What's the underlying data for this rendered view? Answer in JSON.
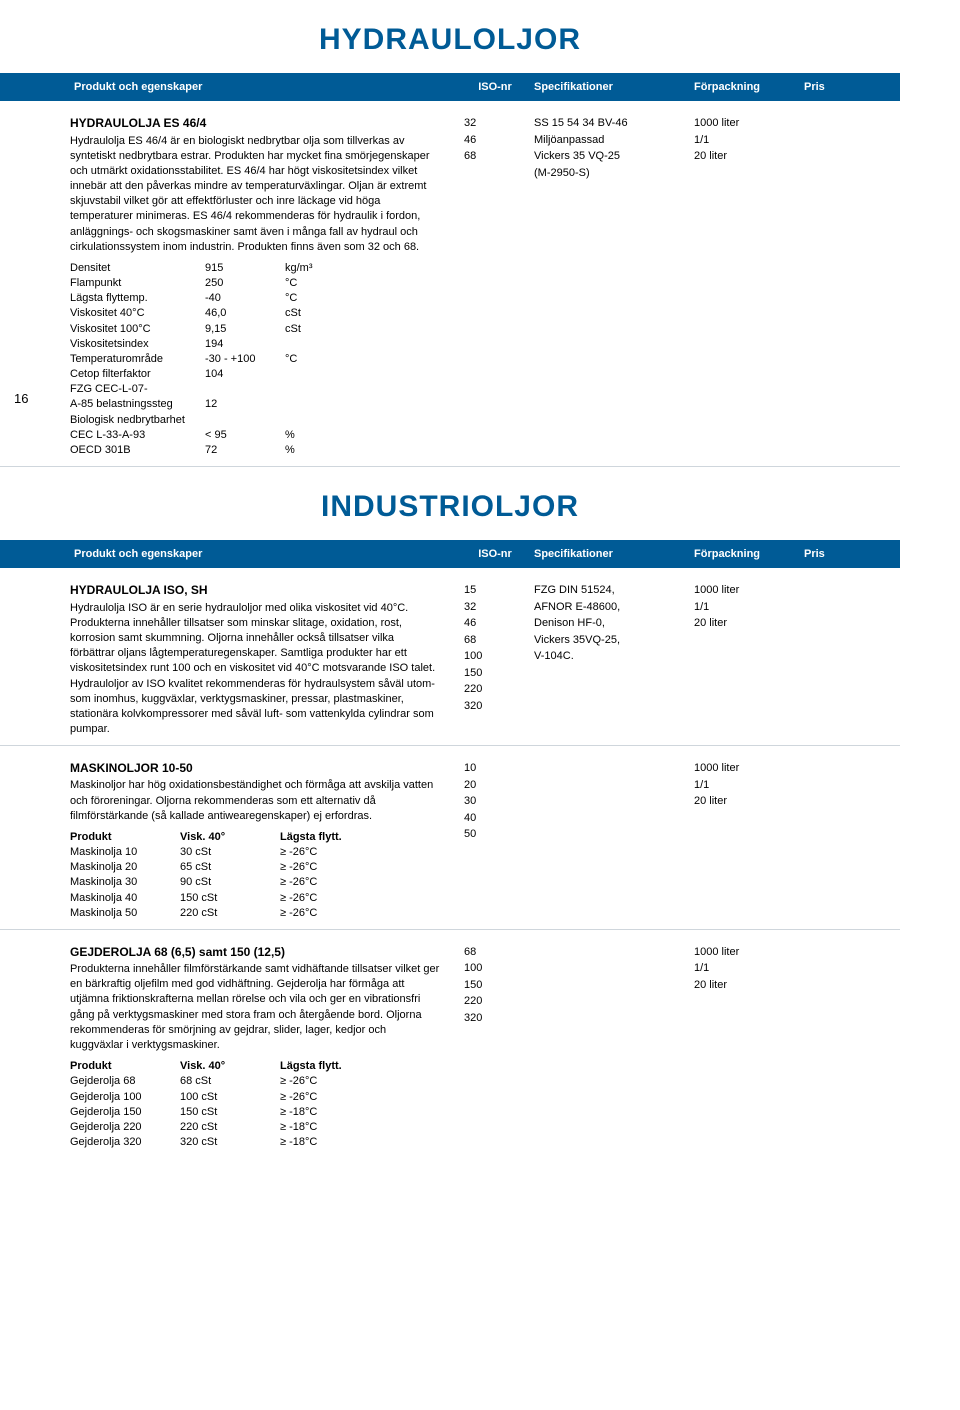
{
  "page_number": "16",
  "colors": {
    "accent": "#005b96",
    "text": "#000000",
    "bg": "#ffffff",
    "divider": "#cfd6dc"
  },
  "title1": "HYDRAULOLJOR",
  "title2": "INDUSTRIOLJOR",
  "headers": {
    "produkt": "Produkt och egenskaper",
    "iso": "ISO-nr",
    "spec": "Specifikationer",
    "pack": "Förpackning",
    "pris": "Pris"
  },
  "sec1": {
    "title": "HYDRAULOLJA ES 46/4",
    "desc": "Hydraulolja ES 46/4 är en biologiskt nedbrytbar olja som tillverkas av syntetiskt nedbrytbara estrar. Produkten har mycket fina smörjegenskaper och utmärkt oxidationsstabilitet. ES 46/4 har högt viskositetsindex vilket innebär att den påverkas mindre av temperaturväxlingar. Oljan är extremt skjuvstabil vilket gör att effektförluster och inre läckage vid höga temperaturer minimeras. ES 46/4 rekommenderas för hydraulik i fordon, anläggnings- och skogsmaskiner samt även i många fall av hydraul och cirkulationssystem inom industrin. Produkten finns även som 32 och 68.",
    "props": [
      {
        "l": "Densitet",
        "v": "915",
        "u": "kg/m³"
      },
      {
        "l": "Flampunkt",
        "v": "250",
        "u": "°C"
      },
      {
        "l": "Lägsta flyttemp.",
        "v": "-40",
        "u": "°C"
      },
      {
        "l": "Viskositet 40°C",
        "v": "46,0",
        "u": "cSt"
      },
      {
        "l": "Viskositet 100°C",
        "v": "9,15",
        "u": "cSt"
      },
      {
        "l": "Viskositetsindex",
        "v": "194",
        "u": ""
      },
      {
        "l": "Temperaturområde",
        "v": "-30 - +100",
        "u": "°C"
      },
      {
        "l": "Cetop filterfaktor",
        "v": "104",
        "u": ""
      },
      {
        "l": "FZG CEC-L-07-",
        "v": "",
        "u": ""
      },
      {
        "l": "A-85 belastningssteg",
        "v": "12",
        "u": ""
      },
      {
        "l": "Biologisk nedbrytbarhet",
        "v": "",
        "u": ""
      },
      {
        "l": "CEC L-33-A-93",
        "v": "< 95",
        "u": "%"
      },
      {
        "l": "OECD 301B",
        "v": "72",
        "u": "%"
      }
    ],
    "iso": [
      "32",
      "46",
      "68"
    ],
    "spec": [
      "SS 15 54 34 BV-46",
      "Miljöanpassad",
      "Vickers 35 VQ-25",
      "(M-2950-S)"
    ],
    "pack": [
      "1000 liter",
      "1/1",
      "20 liter"
    ]
  },
  "sec2": {
    "title": "HYDRAULOLJA ISO, SH",
    "desc": "Hydraulolja ISO är en serie hydrauloljor med olika viskositet vid 40°C. Produkterna innehåller tillsatser som minskar slitage, oxidation, rost, korrosion samt skummning. Oljorna innehåller också tillsatser vilka förbättrar oljans lågtemperaturegenskaper. Samtliga produkter har ett viskositetsindex runt 100 och en viskositet vid 40°C motsvarande ISO talet. Hydrauloljor av ISO kvalitet rekommenderas för hydraulsystem såväl utom- som inomhus, kuggväxlar, verktygsmaskiner, pressar, plastmaskiner, stationära kolvkompressorer med såväl luft- som vattenkylda cylindrar som pumpar.",
    "iso": [
      "15",
      "32",
      "46",
      "68",
      "100",
      "150",
      "220",
      "320"
    ],
    "spec": [
      "FZG DIN 51524,",
      "AFNOR E-48600,",
      "Denison HF-0,",
      "Vickers 35VQ-25,",
      "V-104C."
    ],
    "pack": [
      "1000 liter",
      "1/1",
      "20 liter"
    ]
  },
  "sec3": {
    "title": "MASKINOLJOR 10-50",
    "desc": "Maskinoljor har hög oxidationsbeständighet och förmåga att avskilja vatten och föroreningar. Oljorna rekommenderas som ett alternativ då filmförstärkande (så kallade antiwearegenskaper) ej erfordras.",
    "th": {
      "c1": "Produkt",
      "c2": "Visk. 40°",
      "c3": "Lägsta flytt."
    },
    "rows": [
      {
        "c1": "Maskinolja 10",
        "c2": "30 cSt",
        "c3": "≥ -26°C"
      },
      {
        "c1": "Maskinolja 20",
        "c2": "65 cSt",
        "c3": "≥ -26°C"
      },
      {
        "c1": "Maskinolja 30",
        "c2": "90 cSt",
        "c3": "≥ -26°C"
      },
      {
        "c1": "Maskinolja 40",
        "c2": "150 cSt",
        "c3": "≥ -26°C"
      },
      {
        "c1": "Maskinolja 50",
        "c2": "220 cSt",
        "c3": "≥ -26°C"
      }
    ],
    "iso": [
      "10",
      "20",
      "30",
      "40",
      "50"
    ],
    "pack": [
      "1000 liter",
      "1/1",
      "20 liter"
    ]
  },
  "sec4": {
    "title": "GEJDEROLJA 68 (6,5) samt 150 (12,5)",
    "desc": "Produkterna innehåller filmförstärkande samt vidhäftande tillsatser vilket ger en bärkraftig oljefilm med god vidhäftning. Gejderolja har förmåga att utjämna friktionskrafterna mellan rörelse och vila och ger en vibrationsfri gång på verktygsmaskiner med stora fram och återgående bord. Oljorna rekommenderas för smörjning av gejdrar, slider, lager, kedjor och kuggväxlar i verktygsmaskiner.",
    "th": {
      "c1": "Produkt",
      "c2": "Visk. 40°",
      "c3": "Lägsta flytt."
    },
    "rows": [
      {
        "c1": "Gejderolja 68",
        "c2": "68 cSt",
        "c3": "≥ -26°C"
      },
      {
        "c1": "Gejderolja 100",
        "c2": "100 cSt",
        "c3": "≥ -26°C"
      },
      {
        "c1": "Gejderolja 150",
        "c2": "150 cSt",
        "c3": "≥ -18°C"
      },
      {
        "c1": "Gejderolja 220",
        "c2": "220 cSt",
        "c3": "≥ -18°C"
      },
      {
        "c1": "Gejderolja 320",
        "c2": "320 cSt",
        "c3": "≥ -18°C"
      }
    ],
    "iso": [
      "68",
      "100",
      "150",
      "220",
      "320"
    ],
    "pack": [
      "1000 liter",
      "1/1",
      "20 liter"
    ]
  }
}
